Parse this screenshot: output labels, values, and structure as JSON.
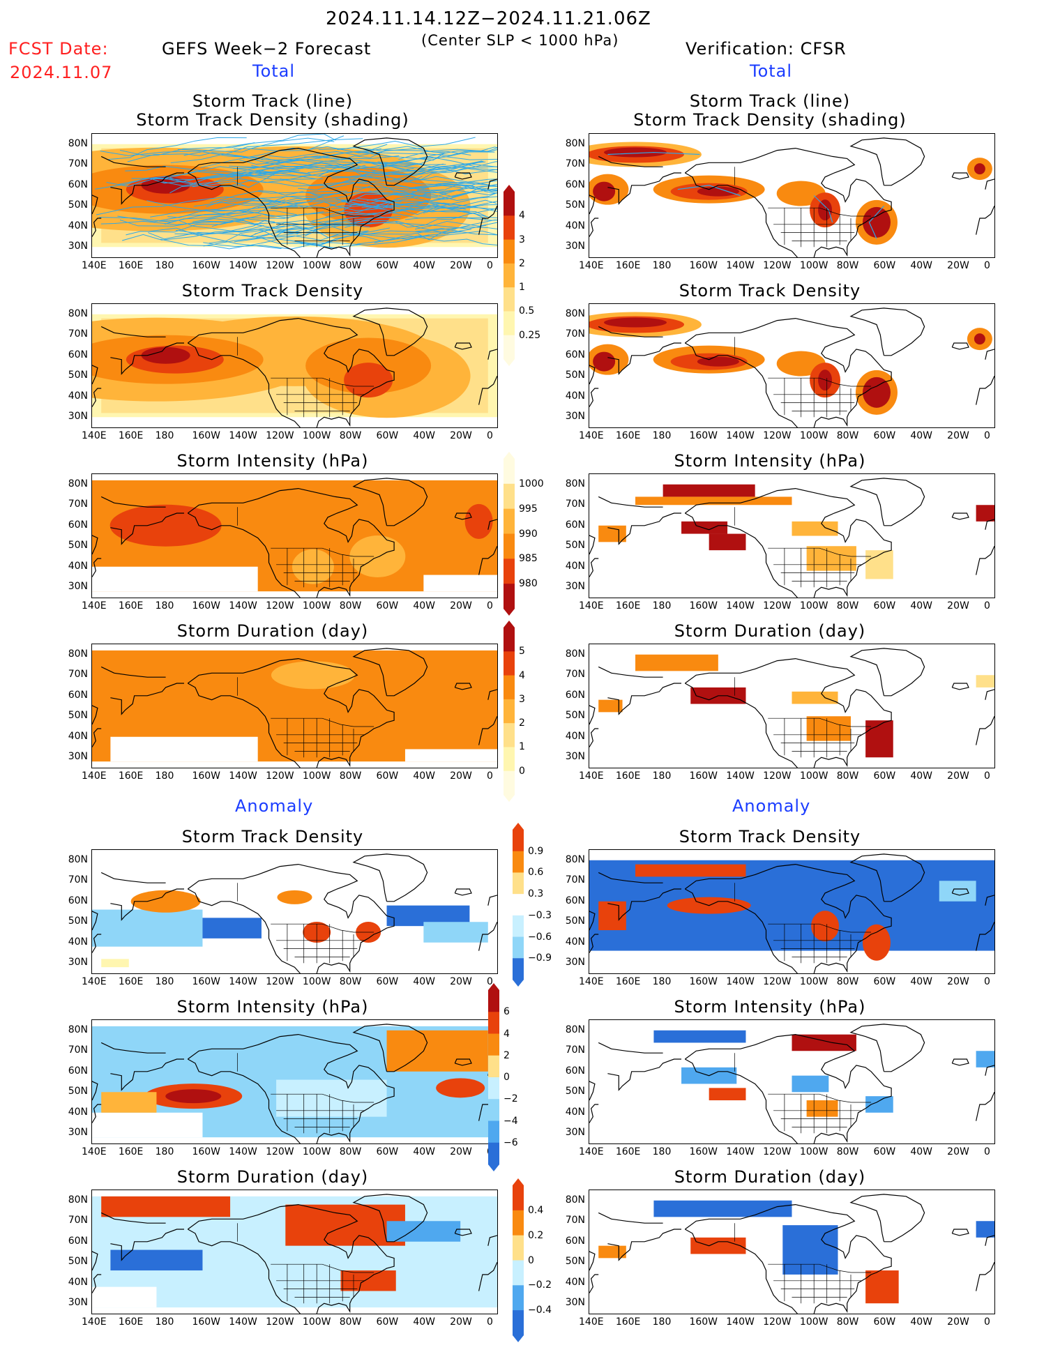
{
  "header": {
    "date_range": "2024.11.14.12Z−2024.11.21.06Z",
    "condition": "(Center SLP < 1000 hPa)",
    "fcst_label": "FCST Date:",
    "fcst_date": "2024.11.07",
    "left_title": "GEFS Week−2 Forecast",
    "right_title": "Verification: CFSR",
    "total_label": "Total",
    "anomaly_label": "Anomaly"
  },
  "panel_titles": {
    "track_line": "Storm Track (line)",
    "track_shading": "Storm Track Density (shading)",
    "density": "Storm Track Density",
    "intensity": "Storm Intensity (hPa)",
    "duration": "Storm Duration (day)"
  },
  "axes": {
    "x_ticks": [
      "140E",
      "160E",
      "180",
      "160W",
      "140W",
      "120W",
      "100W",
      "80W",
      "60W",
      "40W",
      "20W",
      "0"
    ],
    "y_ticks": [
      "80N",
      "70N",
      "60N",
      "50N",
      "40N",
      "30N"
    ]
  },
  "colorbars": {
    "density_total": [
      "4",
      "3",
      "2",
      "1",
      "0.5",
      "0.25"
    ],
    "intensity_total": [
      "1000",
      "995",
      "990",
      "985",
      "980"
    ],
    "duration_total": [
      "5",
      "4",
      "3",
      "2",
      "1",
      "0"
    ],
    "density_anom": [
      "0.9",
      "0.6",
      "0.3",
      "−0.3",
      "−0.6",
      "−0.9"
    ],
    "intensity_anom": [
      "6",
      "4",
      "2",
      "0",
      "−2",
      "−4",
      "−6"
    ],
    "duration_anom": [
      "0.4",
      "0.2",
      "0",
      "−0.2",
      "−0.4"
    ]
  },
  "colors": {
    "warm": [
      "#fff6b0",
      "#ffe08a",
      "#ffb43a",
      "#f98a10",
      "#e8420c",
      "#b01010"
    ],
    "cool": [
      "#c8f0ff",
      "#8fd6f8",
      "#4fa8ef",
      "#2a6fd8",
      "#1456c8"
    ],
    "track_line": "#2da8e8",
    "coast": "#000000"
  }
}
